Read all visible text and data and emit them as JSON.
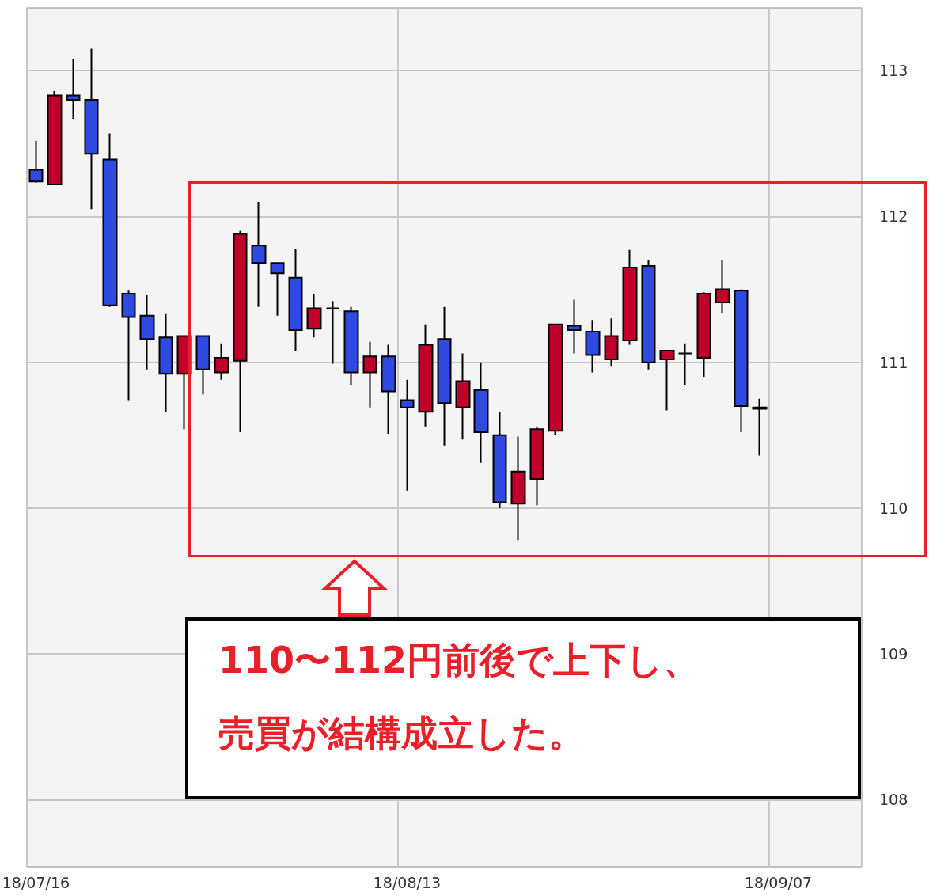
{
  "chart_data": {
    "type": "candlestick",
    "categories": [
      "18/07/16",
      null,
      null,
      null,
      null,
      null,
      null,
      null,
      null,
      null,
      null,
      null,
      null,
      null,
      null,
      null,
      null,
      null,
      null,
      null,
      "18/08/13",
      null,
      null,
      null,
      null,
      null,
      null,
      null,
      null,
      null,
      null,
      null,
      null,
      null,
      null,
      null,
      null,
      null,
      null,
      null,
      "18/09/07",
      null,
      null,
      null,
      null
    ],
    "ohlc": [
      [
        112.32,
        112.52,
        112.23,
        112.24
      ],
      [
        112.22,
        112.86,
        112.22,
        112.83
      ],
      [
        112.83,
        113.08,
        112.67,
        112.8
      ],
      [
        112.8,
        113.15,
        112.05,
        112.43
      ],
      [
        112.39,
        112.57,
        111.38,
        111.39
      ],
      [
        111.47,
        111.49,
        110.74,
        111.31
      ],
      [
        111.32,
        111.46,
        110.95,
        111.16
      ],
      [
        111.17,
        111.33,
        110.66,
        110.92
      ],
      [
        110.92,
        111.18,
        110.54,
        111.18
      ],
      [
        111.18,
        111.18,
        110.78,
        110.95
      ],
      [
        110.93,
        111.13,
        110.88,
        111.03
      ],
      [
        111.01,
        111.9,
        110.52,
        111.88
      ],
      [
        111.8,
        112.1,
        111.38,
        111.68
      ],
      [
        111.68,
        111.68,
        111.32,
        111.61
      ],
      [
        111.58,
        111.78,
        111.08,
        111.22
      ],
      [
        111.23,
        111.47,
        111.17,
        111.37
      ],
      [
        111.37,
        111.42,
        110.99,
        111.37
      ],
      [
        111.35,
        111.38,
        110.84,
        110.93
      ],
      [
        110.93,
        111.14,
        110.69,
        111.04
      ],
      [
        111.04,
        111.12,
        110.51,
        110.8
      ],
      [
        110.74,
        110.88,
        110.12,
        110.69
      ],
      [
        110.66,
        111.26,
        110.56,
        111.12
      ],
      [
        111.16,
        111.38,
        110.43,
        110.72
      ],
      [
        110.69,
        111.06,
        110.47,
        110.87
      ],
      [
        110.81,
        111.0,
        110.31,
        110.52
      ],
      [
        110.5,
        110.66,
        110.0,
        110.04
      ],
      [
        110.03,
        110.49,
        109.78,
        110.25
      ],
      [
        110.2,
        110.56,
        110.02,
        110.54
      ],
      [
        110.53,
        111.26,
        110.5,
        111.26
      ],
      [
        111.25,
        111.43,
        111.06,
        111.22
      ],
      [
        111.21,
        111.29,
        110.93,
        111.05
      ],
      [
        111.02,
        111.3,
        110.97,
        111.18
      ],
      [
        111.15,
        111.77,
        111.12,
        111.65
      ],
      [
        111.66,
        111.7,
        110.95,
        111.0
      ],
      [
        111.02,
        111.08,
        110.67,
        111.08
      ],
      [
        111.06,
        111.13,
        110.84,
        111.06
      ],
      [
        111.03,
        111.48,
        110.9,
        111.47
      ],
      [
        111.41,
        111.7,
        111.34,
        111.5
      ],
      [
        111.49,
        111.5,
        110.52,
        110.7
      ],
      [
        110.69,
        110.75,
        110.36,
        110.68
      ],
      null,
      null,
      null,
      null,
      null
    ],
    "colors": [
      "#2f4ae0",
      "#c0002b",
      "#2f4ae0",
      "#2f4ae0",
      "#2f4ae0",
      "#2f4ae0",
      "#2f4ae0",
      "#2f4ae0",
      "#c0002b",
      "#2f4ae0",
      "#c0002b",
      "#c0002b",
      "#2f4ae0",
      "#2f4ae0",
      "#2f4ae0",
      "#c0002b",
      "#000000",
      "#2f4ae0",
      "#c0002b",
      "#2f4ae0",
      "#2f4ae0",
      "#c0002b",
      "#2f4ae0",
      "#c0002b",
      "#2f4ae0",
      "#2f4ae0",
      "#c0002b",
      "#c0002b",
      "#c0002b",
      "#2f4ae0",
      "#2f4ae0",
      "#c0002b",
      "#c0002b",
      "#2f4ae0",
      "#c0002b",
      "#000000",
      "#c0002b",
      "#c0002b",
      "#2f4ae0",
      "#000000",
      null,
      null,
      null,
      null,
      null
    ],
    "ylim": [
      107.54,
      113.43
    ],
    "yticks": [
      108,
      109,
      110,
      111,
      112,
      113
    ],
    "grid": true,
    "annotations": [
      "110〜112円前後で上下し、",
      "売買が結構成立した。"
    ]
  }
}
